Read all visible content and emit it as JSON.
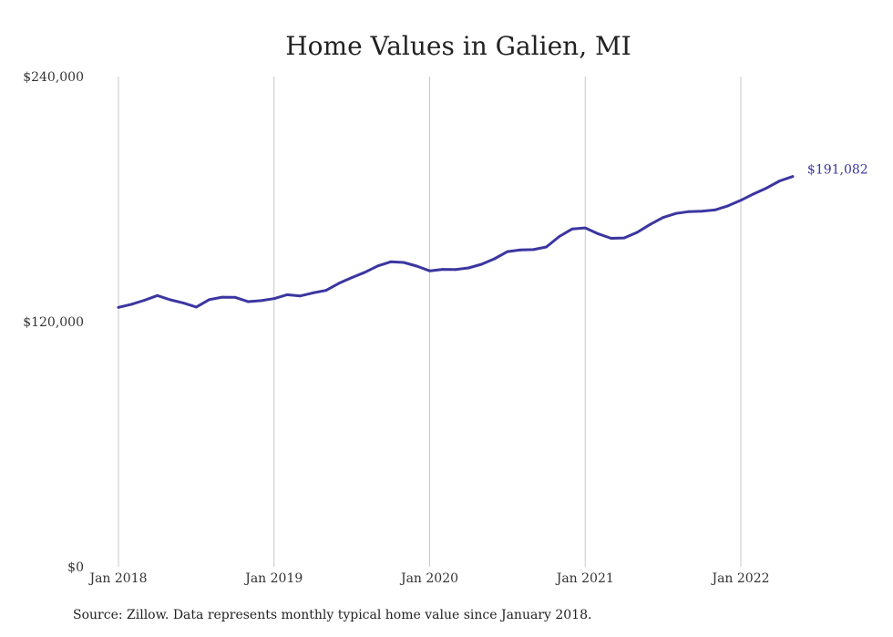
{
  "chart_data": {
    "type": "line",
    "title": "Home Values in Galien, MI",
    "xlabel": "",
    "ylabel": "",
    "ylim": [
      0,
      240000
    ],
    "y_ticks": [
      "$0",
      "$120,000",
      "$240,000"
    ],
    "y_tick_values": [
      0,
      120000,
      240000
    ],
    "x_ticks": [
      "Jan 2018",
      "Jan 2019",
      "Jan 2020",
      "Jan 2021",
      "Jan 2022"
    ],
    "grid": "vertical",
    "series": [
      {
        "color": "#3b36a0",
        "end_label": "$191,082",
        "points": [
          [
            "2018-01",
            127000
          ],
          [
            "2018-02",
            128500
          ],
          [
            "2018-03",
            130500
          ],
          [
            "2018-04",
            132800
          ],
          [
            "2018-05",
            130700
          ],
          [
            "2018-06",
            129200
          ],
          [
            "2018-07",
            127200
          ],
          [
            "2018-08",
            130800
          ],
          [
            "2018-09",
            132000
          ],
          [
            "2018-10",
            131900
          ],
          [
            "2018-11",
            129800
          ],
          [
            "2018-12",
            130300
          ],
          [
            "2019-01",
            131300
          ],
          [
            "2019-02",
            133200
          ],
          [
            "2019-03",
            132600
          ],
          [
            "2019-04",
            134100
          ],
          [
            "2019-05",
            135300
          ],
          [
            "2019-06",
            138800
          ],
          [
            "2019-07",
            141600
          ],
          [
            "2019-08",
            144200
          ],
          [
            "2019-09",
            147300
          ],
          [
            "2019-10",
            149300
          ],
          [
            "2019-11",
            149000
          ],
          [
            "2019-12",
            147200
          ],
          [
            "2020-01",
            144900
          ],
          [
            "2020-02",
            145600
          ],
          [
            "2020-03",
            145500
          ],
          [
            "2020-04",
            146300
          ],
          [
            "2020-05",
            148100
          ],
          [
            "2020-06",
            150800
          ],
          [
            "2020-07",
            154300
          ],
          [
            "2020-08",
            155100
          ],
          [
            "2020-09",
            155300
          ],
          [
            "2020-10",
            156600
          ],
          [
            "2020-11",
            161700
          ],
          [
            "2020-12",
            165400
          ],
          [
            "2021-01",
            165900
          ],
          [
            "2021-02",
            163000
          ],
          [
            "2021-03",
            160800
          ],
          [
            "2021-04",
            161000
          ],
          [
            "2021-05",
            163700
          ],
          [
            "2021-06",
            167600
          ],
          [
            "2021-07",
            171000
          ],
          [
            "2021-08",
            173000
          ],
          [
            "2021-09",
            173900
          ],
          [
            "2021-10",
            174100
          ],
          [
            "2021-11",
            174700
          ],
          [
            "2021-12",
            176700
          ],
          [
            "2022-01",
            179400
          ],
          [
            "2022-02",
            182600
          ],
          [
            "2022-03",
            185500
          ],
          [
            "2022-04",
            188900
          ],
          [
            "2022-05",
            191082
          ]
        ]
      }
    ]
  },
  "source_note": "Source: Zillow. Data represents monthly typical home value since January 2018."
}
